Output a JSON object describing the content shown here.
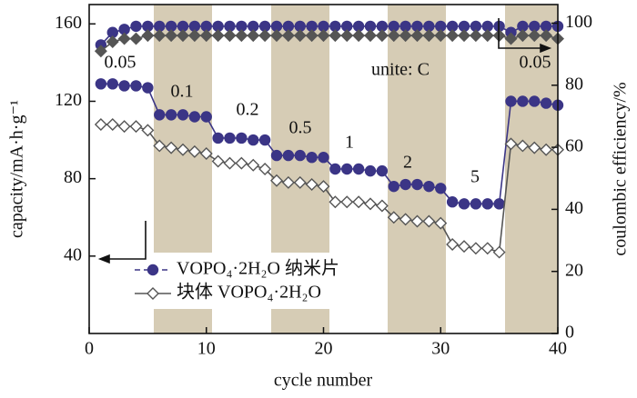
{
  "chart_data": {
    "type": "line",
    "x_label": "cycle number",
    "y_label": "capacity/mA·h·g⁻¹",
    "y2_label": "coulombic efficiency/%",
    "x": [
      1,
      2,
      3,
      4,
      5,
      6,
      7,
      8,
      9,
      10,
      11,
      12,
      13,
      14,
      15,
      16,
      17,
      18,
      19,
      20,
      21,
      22,
      23,
      24,
      25,
      26,
      27,
      28,
      29,
      30,
      31,
      32,
      33,
      34,
      35,
      36,
      37,
      38,
      39,
      40
    ],
    "xlim": [
      0,
      40
    ],
    "xticks": [
      0,
      10,
      20,
      30,
      40
    ],
    "ylim": [
      0,
      170
    ],
    "yticks": [
      40,
      80,
      120,
      160
    ],
    "y2lim": [
      0,
      106
    ],
    "y2ticks": [
      0,
      20,
      40,
      60,
      80,
      100
    ],
    "series": [
      {
        "name": "VOPO₄·2H₂O 纳米片",
        "color": "#3b3586",
        "fill": "#3b3586",
        "marker": "circle",
        "values": [
          129,
          129,
          128,
          128,
          127,
          113,
          113,
          113,
          112,
          112,
          101,
          101,
          101,
          100,
          100,
          92,
          92,
          92,
          91,
          91,
          85,
          85,
          85,
          84,
          84,
          76,
          77,
          77,
          76,
          75,
          68,
          67,
          67,
          67,
          67,
          120,
          120,
          120,
          119,
          118
        ]
      },
      {
        "name": "块体 VOPO₄·2H₂O",
        "color": "#555555",
        "fill": "#ffffff",
        "marker": "diamond",
        "values": [
          108,
          108,
          107,
          107,
          105,
          97,
          96,
          95,
          94,
          93,
          89,
          88,
          88,
          87,
          85,
          79,
          78,
          78,
          77,
          76,
          68,
          68,
          68,
          67,
          66,
          60,
          59,
          58,
          58,
          57,
          46,
          45,
          44,
          44,
          42,
          98,
          97,
          96,
          95,
          95
        ]
      },
      {
        "color": "#3b3586",
        "fill": "#3b3586",
        "marker": "circle",
        "axis": "y2",
        "values": [
          93,
          97,
          98,
          99,
          99,
          99,
          99,
          99,
          99,
          99,
          99,
          99,
          99,
          99,
          99,
          99,
          99,
          99,
          99,
          99,
          99,
          99,
          99,
          99,
          99,
          99,
          99,
          99,
          99,
          99,
          99,
          99,
          99,
          99,
          99,
          97,
          99,
          99,
          99,
          99
        ]
      },
      {
        "color": "#555555",
        "fill": "#555555",
        "marker": "diamond",
        "axis": "y2",
        "values": [
          91,
          94,
          95,
          95,
          96,
          96,
          96,
          96,
          96,
          96,
          96,
          96,
          96,
          96,
          96,
          96,
          96,
          96,
          96,
          96,
          96,
          96,
          96,
          96,
          96,
          96,
          96,
          96,
          96,
          96,
          96,
          96,
          96,
          96,
          96,
          95,
          96,
          96,
          96,
          95
        ]
      }
    ],
    "annotations": [
      "0.05",
      "0.1",
      "0.2",
      "0.5",
      "1",
      "2",
      "5",
      "0.05",
      "unite: C"
    ]
  }
}
